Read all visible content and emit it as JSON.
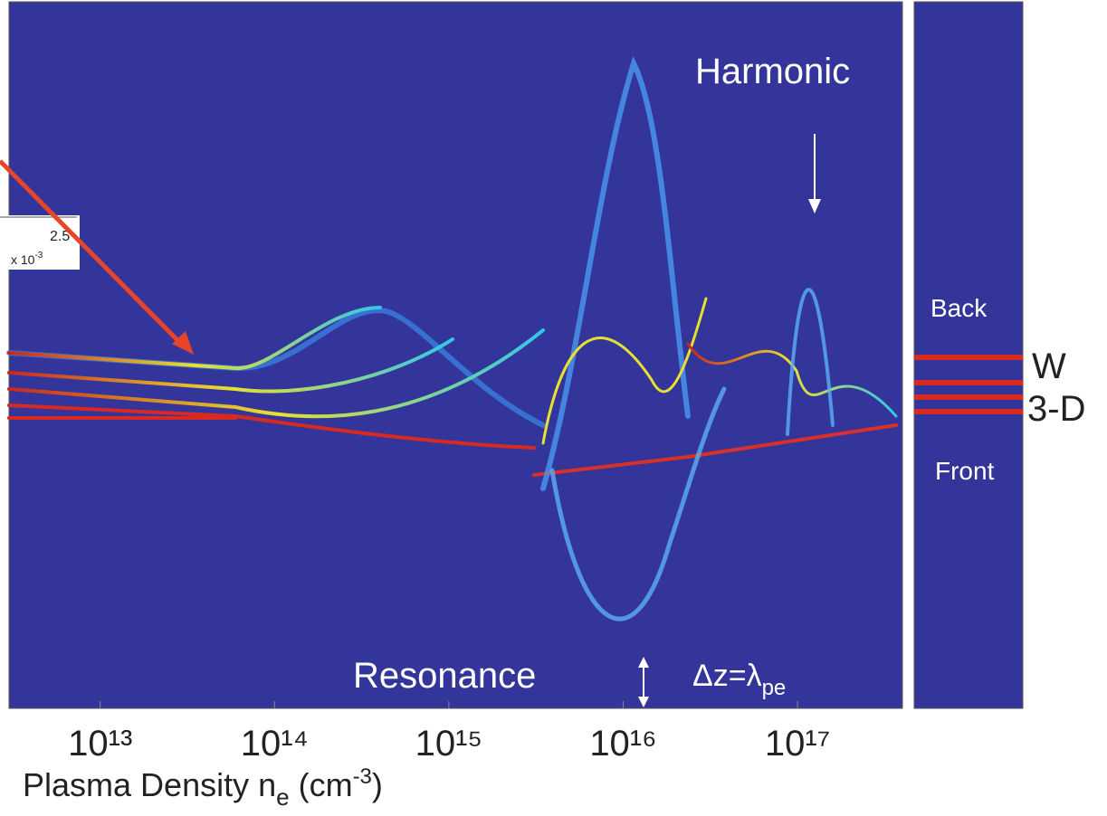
{
  "chart_data": {
    "type": "density",
    "xscale": "log",
    "xlim": [
      3000000000000.0,
      4e+17
    ],
    "xticks": [
      {
        "value": 10000000000000.0,
        "label": "10¹³"
      },
      {
        "value": 100000000000000.0,
        "label": "10¹⁴"
      },
      {
        "value": 1000000000000000.0,
        "label": "10¹⁵"
      },
      {
        "value": 1e+16,
        "label": "10¹⁶"
      },
      {
        "value": 1e+17,
        "label": "10¹⁷"
      }
    ],
    "xlabel": {
      "text": "Plasma Density n",
      "sub": "e",
      "unit": " (cm",
      "sup": "-3",
      "close": ")"
    },
    "annotations": {
      "harmonic": "Harmonic",
      "resonance": "Resonance",
      "delta_z": {
        "text": "Δz=λ",
        "sub": "pe"
      },
      "back": "Back",
      "front": "Front",
      "w": "W",
      "three_d": "3-D"
    },
    "inset": {
      "tick": "2.5",
      "scale": "x 10",
      "sup": "-3"
    }
  }
}
